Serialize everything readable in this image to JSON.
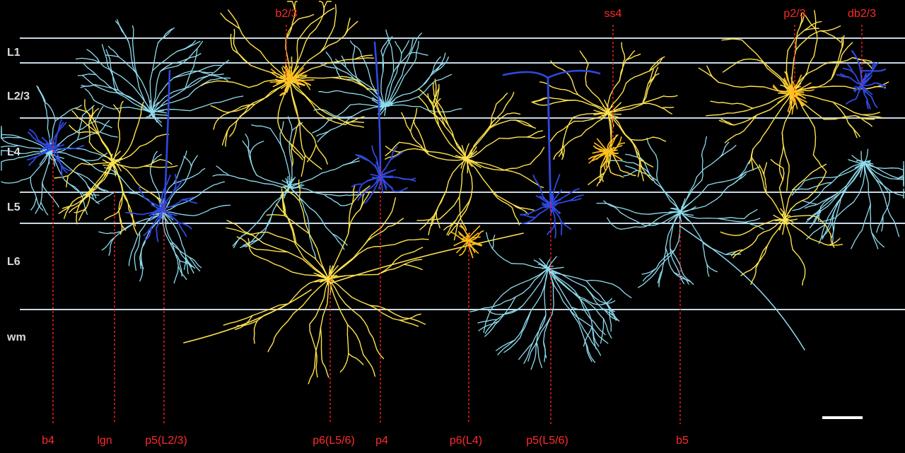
{
  "figure": {
    "background_color": "#000000",
    "layer_line_color": "#c8d8e4",
    "marker_color": "#ff2020",
    "palette": {
      "yellow": "#ffe34d",
      "orange": "#ffc01e",
      "light_blue": "#8fdcee",
      "dark_blue": "#2f49e0"
    },
    "layers": [
      "L1",
      "L2/3",
      "L4",
      "L5",
      "L6",
      "wm"
    ],
    "top_labels": [
      "b2/3",
      "ss4",
      "p2/3",
      "db2/3"
    ],
    "bottom_labels": [
      "b4",
      "lgn",
      "p5(L2/3)",
      "p6(L5/6)",
      "p4",
      "p6(L4)",
      "p5(L5/6)",
      "b5"
    ],
    "scale_bar": {
      "color": "#ffffff"
    }
  }
}
